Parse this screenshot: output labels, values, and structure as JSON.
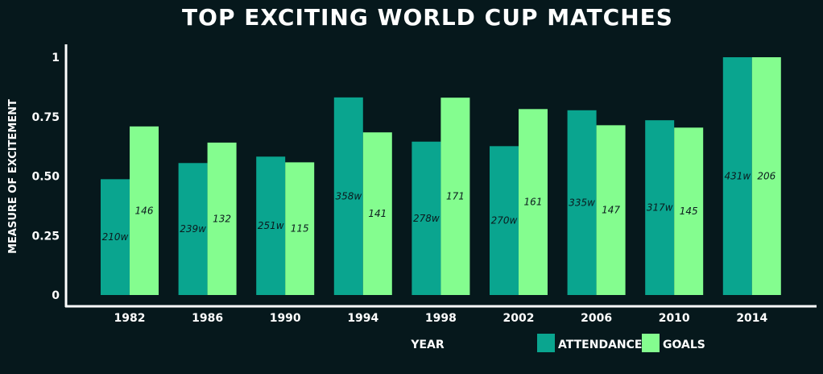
{
  "colors": {
    "background": "#06181c",
    "attendance": "#0aa58f",
    "goals": "#84fd8f",
    "text": "#ffffff",
    "label": "#0b1b1e"
  },
  "chart_data": {
    "type": "bar",
    "title": "TOP EXCITING WORLD CUP MATCHES",
    "xlabel": "YEAR",
    "ylabel": "MEASURE OF EXCITEMENT",
    "ylim": [
      0,
      1
    ],
    "yticks": [
      {
        "value": 0,
        "label": "0"
      },
      {
        "value": 0.25,
        "label": "0.25"
      },
      {
        "value": 0.5,
        "label": "0.50"
      },
      {
        "value": 0.75,
        "label": "0.75"
      },
      {
        "value": 1,
        "label": "1"
      }
    ],
    "categories": [
      "1982",
      "1986",
      "1990",
      "1994",
      "1998",
      "2002",
      "2006",
      "2010",
      "2014"
    ],
    "series": [
      {
        "name": "ATTENDANCE",
        "color": "#0aa58f",
        "values": [
          0.487,
          0.555,
          0.582,
          0.831,
          0.645,
          0.626,
          0.777,
          0.735,
          1.0
        ],
        "labels": [
          "210w",
          "239w",
          "251w",
          "358w",
          "278w",
          "270w",
          "335w",
          "317w",
          "431w"
        ]
      },
      {
        "name": "GOALS",
        "color": "#84fd8f",
        "values": [
          0.709,
          0.641,
          0.558,
          0.684,
          0.83,
          0.782,
          0.714,
          0.704,
          1.0
        ],
        "labels": [
          "146",
          "132",
          "115",
          "141",
          "171",
          "161",
          "147",
          "145",
          "206"
        ]
      }
    ],
    "legend": {
      "position": "bottom-right",
      "items": [
        "ATTENDANCE",
        "GOALS"
      ]
    }
  }
}
